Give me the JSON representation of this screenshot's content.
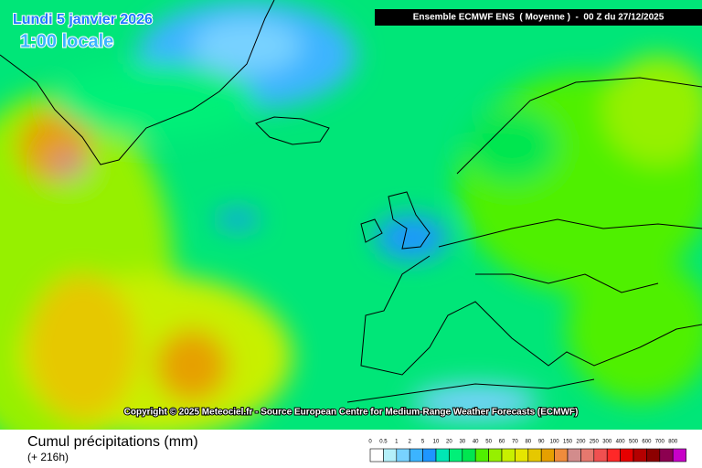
{
  "map": {
    "date": "Lundi 5 janvier 2026",
    "time": "1:00 locale",
    "header": "Ensemble ECMWF ENS  ( Moyenne )  -  00 Z du 27/12/2025",
    "copyright": "Copyright © 2025 Meteociel.fr - Source European Centre for Medium-Range Weather Forecasts (ECMWF)"
  },
  "footer": {
    "title": "Cumul précipitations (mm)",
    "subtitle": "(+ 216h)"
  },
  "legend": {
    "items": [
      {
        "label": 0,
        "color": "#ffffff"
      },
      {
        "label": 0.5,
        "color": "#b4f0fa"
      },
      {
        "label": 1,
        "color": "#78d2ff"
      },
      {
        "label": 2,
        "color": "#3cb4ff"
      },
      {
        "label": 5,
        "color": "#1e96ff"
      },
      {
        "label": 10,
        "color": "#00e6b4"
      },
      {
        "label": 20,
        "color": "#00f078"
      },
      {
        "label": 30,
        "color": "#00e650"
      },
      {
        "label": 40,
        "color": "#50f000"
      },
      {
        "label": 50,
        "color": "#96f000"
      },
      {
        "label": 60,
        "color": "#c8f000"
      },
      {
        "label": 70,
        "color": "#e6e600"
      },
      {
        "label": 80,
        "color": "#e6c800"
      },
      {
        "label": 90,
        "color": "#e6a000"
      },
      {
        "label": 100,
        "color": "#f08c3c"
      },
      {
        "label": 150,
        "color": "#d28c8c"
      },
      {
        "label": 200,
        "color": "#e6786e"
      },
      {
        "label": 250,
        "color": "#f05050"
      },
      {
        "label": 300,
        "color": "#ff2828"
      },
      {
        "label": 400,
        "color": "#e60000"
      },
      {
        "label": 500,
        "color": "#b40000"
      },
      {
        "label": 600,
        "color": "#8c0000"
      },
      {
        "label": 700,
        "color": "#8c0050"
      },
      {
        "label": 800,
        "color": "#c800c8"
      }
    ]
  }
}
